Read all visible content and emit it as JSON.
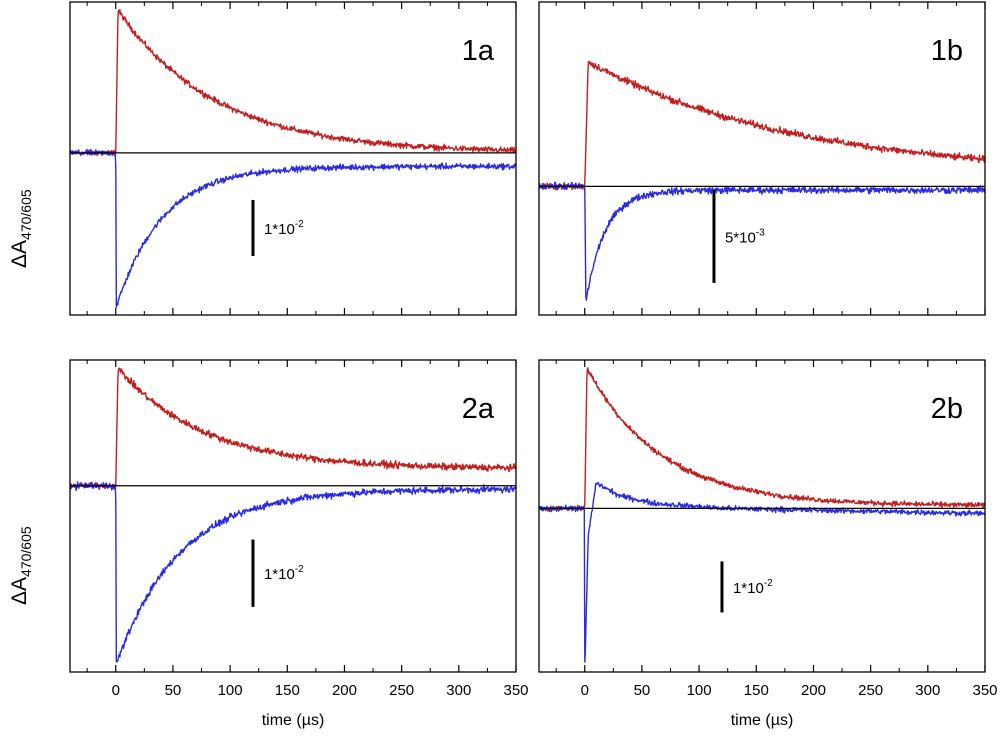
{
  "chart_data": {
    "type": "line",
    "colors": {
      "red_series": "#c02020",
      "blue_series": "#2a2ae0",
      "baseline": "#000000"
    },
    "xlabel": "time (µs)",
    "ylabel_main": "ΔA",
    "ylabel_sub": "470/605",
    "xlim": [
      -40,
      350
    ],
    "x_ticks": [
      0,
      50,
      100,
      150,
      200,
      250,
      300,
      350
    ],
    "x_tick_labels": [
      "0",
      "50",
      "100",
      "150",
      "200",
      "250",
      "300",
      "350"
    ],
    "panels": [
      {
        "label": "1a",
        "ylim": [
          -0.0275,
          0.0255
        ],
        "scale_bar": {
          "value": 0.01,
          "label_base": "1*10",
          "label_exp": "-2",
          "x": 120,
          "y_bottom": -0.0184
        },
        "series": [
          {
            "name": "red",
            "color": "#c02020",
            "pre_level": 0,
            "peak_time": 2,
            "peak": 0.0255,
            "tail": 0.0,
            "tau": 85,
            "noise": 0.00025
          },
          {
            "name": "blue",
            "color": "#2a2ae0",
            "pre_level": 0,
            "peak_time": 0.5,
            "peak": -0.0275,
            "tail": -0.0024,
            "tau": 40,
            "noise": 0.00025
          }
        ]
      },
      {
        "label": "1b",
        "ylim": [
          -0.0065,
          0.0095
        ],
        "scale_bar": {
          "value": 0.005,
          "label_base": "5*10",
          "label_exp": "-3",
          "x": 113,
          "y_bottom": -0.0052
        },
        "series": [
          {
            "name": "red",
            "color": "#c02020",
            "pre_level": 0,
            "peak_time": 3,
            "peak": 0.0067,
            "tail": 0.0005,
            "tau": 185,
            "noise": 9e-05
          },
          {
            "name": "blue",
            "color": "#2a2ae0",
            "pre_level": 0,
            "peak_time": 1,
            "peak": -0.0062,
            "tail": -0.0002,
            "tau": 17,
            "noise": 9e-05
          }
        ]
      },
      {
        "label": "2a",
        "ylim": [
          -0.0265,
          0.0175
        ],
        "scale_bar": {
          "value": 0.01,
          "label_base": "1*10",
          "label_exp": "-2",
          "x": 120,
          "y_bottom": -0.018
        },
        "series": [
          {
            "name": "red",
            "color": "#c02020",
            "pre_level": 0,
            "peak_time": 2,
            "peak": 0.0175,
            "tail": 0.0025,
            "tau": 75,
            "noise": 0.00025
          },
          {
            "name": "blue",
            "color": "#2a2ae0",
            "pre_level": 0,
            "peak_time": 0.5,
            "peak": -0.0265,
            "tail": -0.0005,
            "tau": 55,
            "noise": 0.00025
          }
        ]
      },
      {
        "label": "2b",
        "ylim": [
          -0.035,
          0.023
        ],
        "scale_bar": {
          "value": 0.01,
          "label_base": "1*10",
          "label_exp": "-2",
          "x": 120,
          "y_bottom": -0.0249
        },
        "series": [
          {
            "name": "red",
            "color": "#c02020",
            "pre_level": -0.0045,
            "peak_time": 2,
            "peak": 0.023,
            "tail": -0.004,
            "tau": 65,
            "noise": 0.00025
          },
          {
            "name": "blue",
            "color": "#2a2ae0",
            "pre_level": -0.0045,
            "shape": "dip-rise",
            "points": [
              [
                0.3,
                -0.0345
              ],
              [
                3,
                -0.01
              ],
              [
                10,
                0.0005
              ],
              [
                30,
                -0.002
              ],
              [
                60,
                -0.0035
              ],
              [
                120,
                -0.0045
              ],
              [
                350,
                -0.0055
              ]
            ],
            "noise": 0.00025
          }
        ]
      }
    ]
  }
}
